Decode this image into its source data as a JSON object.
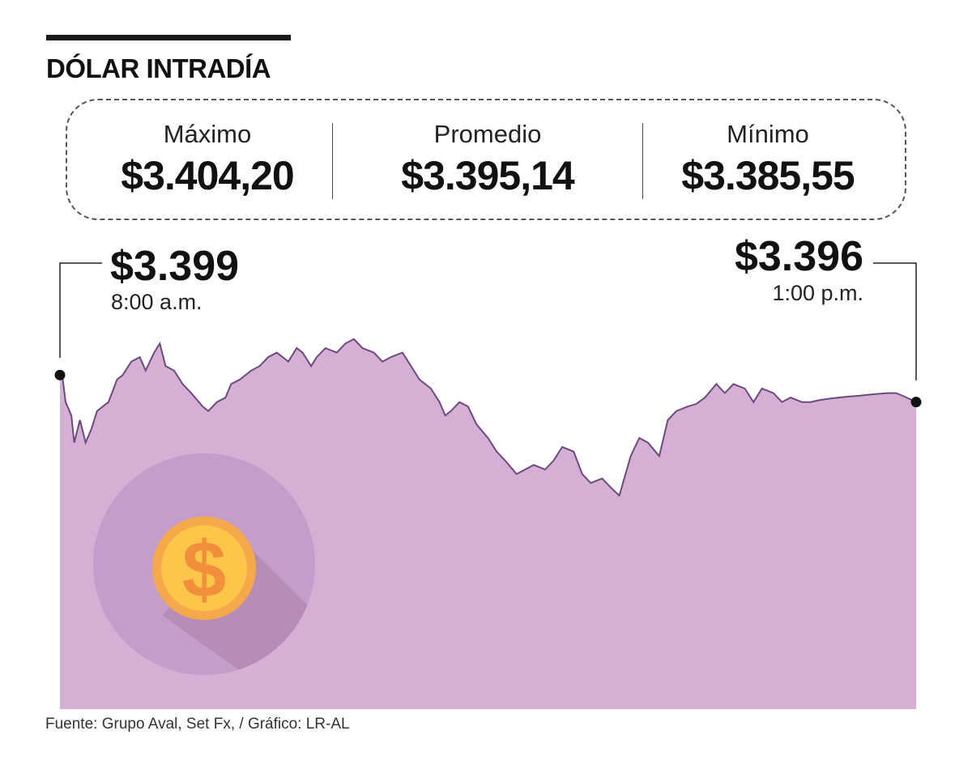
{
  "title": "DÓLAR INTRADÍA",
  "stats": [
    {
      "label": "Máximo",
      "value": "$3.404,20"
    },
    {
      "label": "Promedio",
      "value": "$3.395,14"
    },
    {
      "label": "Mínimo",
      "value": "$3.385,55"
    }
  ],
  "callouts": {
    "open": {
      "value": "$3.399",
      "time": "8:00 a.m."
    },
    "close": {
      "value": "$3.396",
      "time": "1:00 p.m."
    }
  },
  "footer": "Fuente: Grupo Aval, Set Fx, / Gráfico: LR-AL",
  "colors": {
    "area_fill": "#d5afd4",
    "line": "#6b4a7e",
    "circle": "#c59dc9",
    "coin_outer": "#f5a94a",
    "coin_inner": "#fdc54a",
    "coin_symbol": "#f18f3b"
  },
  "chart_data": {
    "type": "area",
    "title": "DÓLAR INTRADÍA",
    "xlabel": "",
    "ylabel": "",
    "x_unit": "minutes after 8:00 a.m.",
    "ylim": [
      3384,
      3406.5
    ],
    "xlim": [
      0,
      300
    ],
    "x": [
      0,
      1,
      2,
      4,
      5,
      7,
      9,
      11,
      13,
      15,
      17,
      20,
      22,
      25,
      28,
      30,
      33,
      35,
      37,
      40,
      43,
      46,
      50,
      52,
      55,
      58,
      60,
      63,
      67,
      70,
      73,
      76,
      80,
      83,
      85,
      88,
      90,
      93,
      97,
      100,
      103,
      106,
      110,
      113,
      116,
      120,
      123,
      126,
      128,
      130,
      133,
      135,
      137,
      140,
      143,
      146,
      150,
      153,
      156,
      160,
      163,
      166,
      170,
      173,
      176,
      180,
      183,
      186,
      190,
      193,
      196,
      200,
      203,
      206,
      210,
      213,
      216,
      220,
      223,
      226,
      230,
      233,
      236,
      240,
      243,
      246,
      250,
      253,
      256,
      260,
      263,
      266,
      270,
      273,
      276,
      280,
      283,
      286,
      290,
      293,
      296,
      300
    ],
    "y": [
      3399.0,
      3398.5,
      3396.0,
      3394.5,
      3391.5,
      3394.0,
      3391.5,
      3393.0,
      3395.0,
      3395.5,
      3396.0,
      3398.5,
      3399.0,
      3400.5,
      3401.0,
      3399.5,
      3401.5,
      3402.5,
      3400.0,
      3399.5,
      3398.0,
      3397.0,
      3395.5,
      3395.0,
      3396.0,
      3396.5,
      3398.0,
      3398.5,
      3399.5,
      3400.0,
      3401.0,
      3401.5,
      3400.5,
      3402.0,
      3401.5,
      3400.0,
      3401.0,
      3402.0,
      3401.5,
      3402.5,
      3403.0,
      3402.0,
      3401.5,
      3400.5,
      3401.0,
      3401.5,
      3400.0,
      3398.5,
      3398.0,
      3397.5,
      3396.0,
      3394.5,
      3395.0,
      3396.0,
      3395.5,
      3393.5,
      3392.0,
      3390.5,
      3389.5,
      3388.0,
      3388.5,
      3389.0,
      3388.5,
      3389.5,
      3391.0,
      3390.5,
      3388.0,
      3387.0,
      3387.5,
      3386.5,
      3385.6,
      3390.0,
      3392.0,
      3391.5,
      3390.0,
      3394.0,
      3395.0,
      3395.5,
      3395.8,
      3396.5,
      3398.0,
      3397.0,
      3398.0,
      3397.5,
      3396.0,
      3397.5,
      3397.0,
      3396.0,
      3396.5,
      3396.0,
      3396.0,
      3396.2,
      3396.4,
      3396.5,
      3396.6,
      3396.7,
      3396.8,
      3396.9,
      3397.0,
      3397.0,
      3396.6,
      3396.0
    ]
  }
}
